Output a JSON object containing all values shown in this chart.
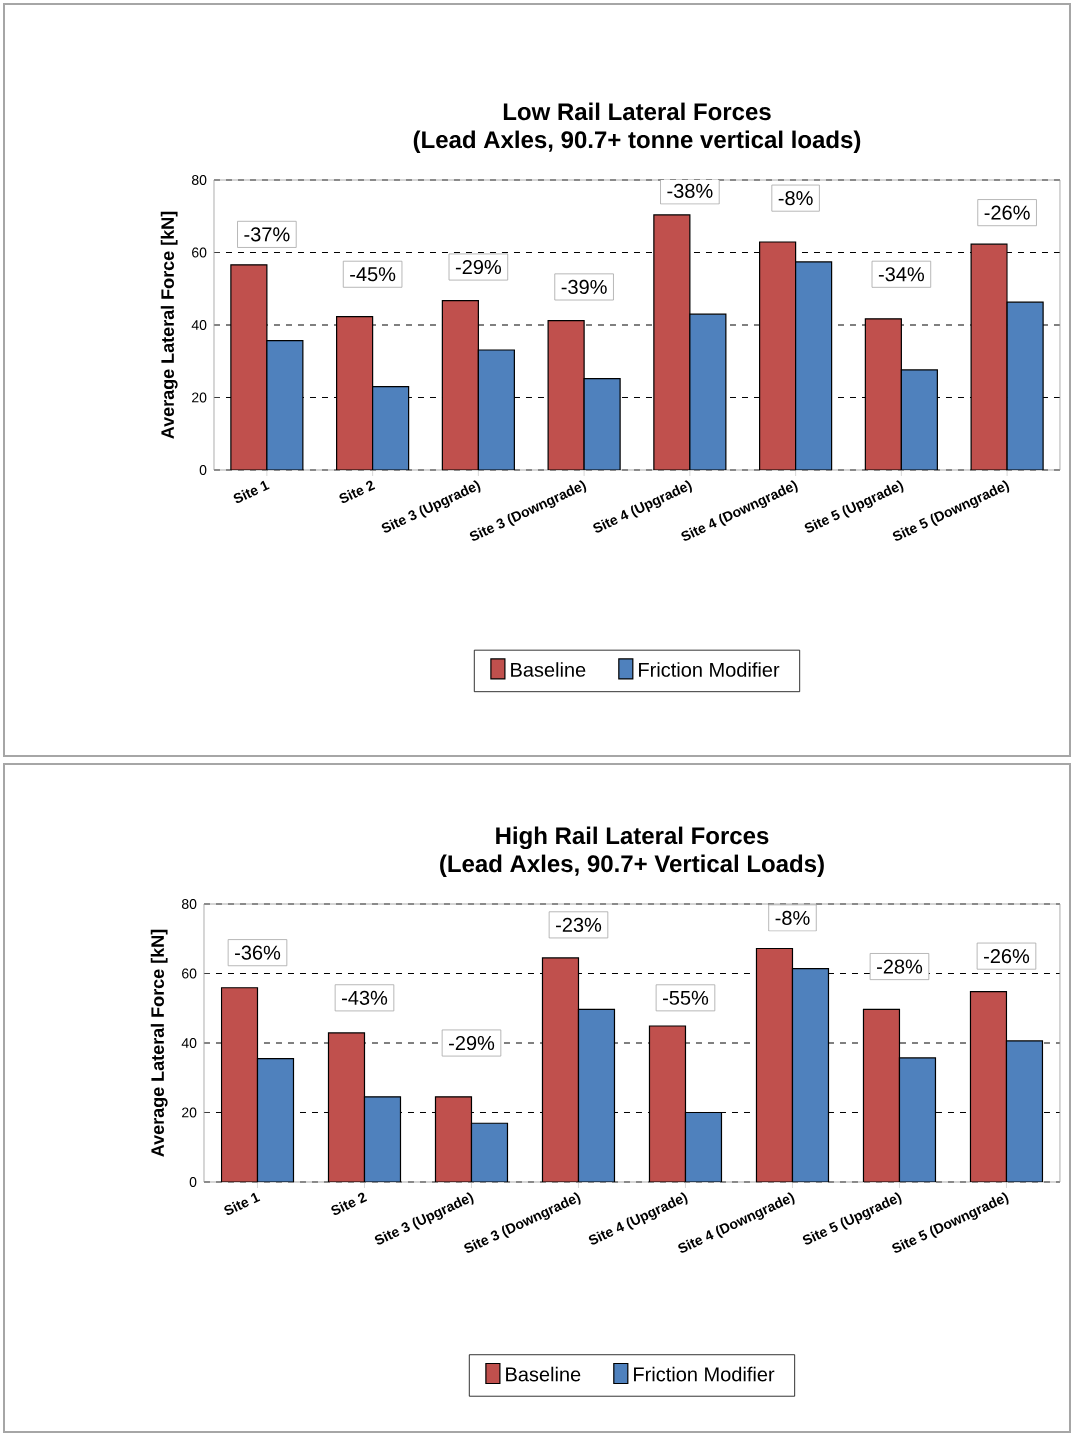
{
  "chart_data": [
    {
      "type": "bar",
      "title": "Low Rail Lateral Forces",
      "subtitle": "(Lead Axles, 90.7+ tonne vertical loads)",
      "ylabel": "Average Lateral Force [kN]",
      "categories": [
        "Site 1",
        "Site 2",
        "Site 3 (Upgrade)",
        "Site 3 (Downgrade)",
        "Site 4 (Upgrade)",
        "Site 4 (Downgrade)",
        "Site 5 (Upgrade)",
        "Site 5 (Downgrade)"
      ],
      "series": [
        {
          "name": "Baseline",
          "color": "#c0504d",
          "values": [
            56.6,
            42.3,
            46.7,
            41.2,
            70.4,
            62.9,
            41.7,
            62.3
          ]
        },
        {
          "name": "Friction Modifier",
          "color": "#4f81bd",
          "values": [
            35.7,
            23,
            33.1,
            25.2,
            43,
            57.4,
            27.6,
            46.3
          ]
        }
      ],
      "ylim": [
        0,
        80
      ],
      "yticks": [
        0,
        20,
        40,
        60,
        80
      ],
      "grid": "y",
      "legend": "bottom",
      "annotations": [
        {
          "text": "-37%",
          "x": "Site 1",
          "y": 65
        },
        {
          "text": "-45%",
          "x": "Site 2",
          "y": 54
        },
        {
          "text": "-29%",
          "x": "Site 3 (Upgrade)",
          "y": 56
        },
        {
          "text": "-39%",
          "x": "Site 3 (Downgrade)",
          "y": 50.5
        },
        {
          "text": "-38%",
          "x": "Site 4 (Upgrade)",
          "y": 77
        },
        {
          "text": "-8%",
          "x": "Site 4 (Downgrade)",
          "y": 75
        },
        {
          "text": "-34%",
          "x": "Site 5 (Upgrade)",
          "y": 54
        },
        {
          "text": "-26%",
          "x": "Site 5 (Downgrade)",
          "y": 71
        }
      ]
    },
    {
      "type": "bar",
      "title": "High Rail Lateral Forces",
      "subtitle": "(Lead Axles, 90.7+ Vertical Loads)",
      "ylabel": "Average Lateral Force [kN]",
      "categories": [
        "Site 1",
        "Site 2",
        "Site 3 (Upgrade)",
        "Site 3 (Downgrade)",
        "Site 4 (Upgrade)",
        "Site 4 (Downgrade)",
        "Site 5 (Upgrade)",
        "Site 5 (Downgrade)"
      ],
      "series": [
        {
          "name": "Baseline",
          "color": "#c0504d",
          "values": [
            55.9,
            42.9,
            24.5,
            64.5,
            44.9,
            67.2,
            49.7,
            54.8
          ]
        },
        {
          "name": "Friction Modifier",
          "color": "#4f81bd",
          "values": [
            35.5,
            24.5,
            16.9,
            49.7,
            20,
            61.4,
            35.7,
            40.6
          ]
        }
      ],
      "ylim": [
        0,
        80
      ],
      "yticks": [
        0,
        20,
        40,
        60,
        80
      ],
      "grid": "y",
      "legend": "bottom",
      "annotations": [
        {
          "text": "-36%",
          "x": "Site 1",
          "y": 66
        },
        {
          "text": "-43%",
          "x": "Site 2",
          "y": 53
        },
        {
          "text": "-29%",
          "x": "Site 3 (Upgrade)",
          "y": 40
        },
        {
          "text": "-23%",
          "x": "Site 3 (Downgrade)",
          "y": 74
        },
        {
          "text": "-55%",
          "x": "Site 4 (Upgrade)",
          "y": 53
        },
        {
          "text": "-8%",
          "x": "Site 4 (Downgrade)",
          "y": 76
        },
        {
          "text": "-28%",
          "x": "Site 5 (Upgrade)",
          "y": 62
        },
        {
          "text": "-26%",
          "x": "Site 5 (Downgrade)",
          "y": 65
        }
      ]
    }
  ]
}
